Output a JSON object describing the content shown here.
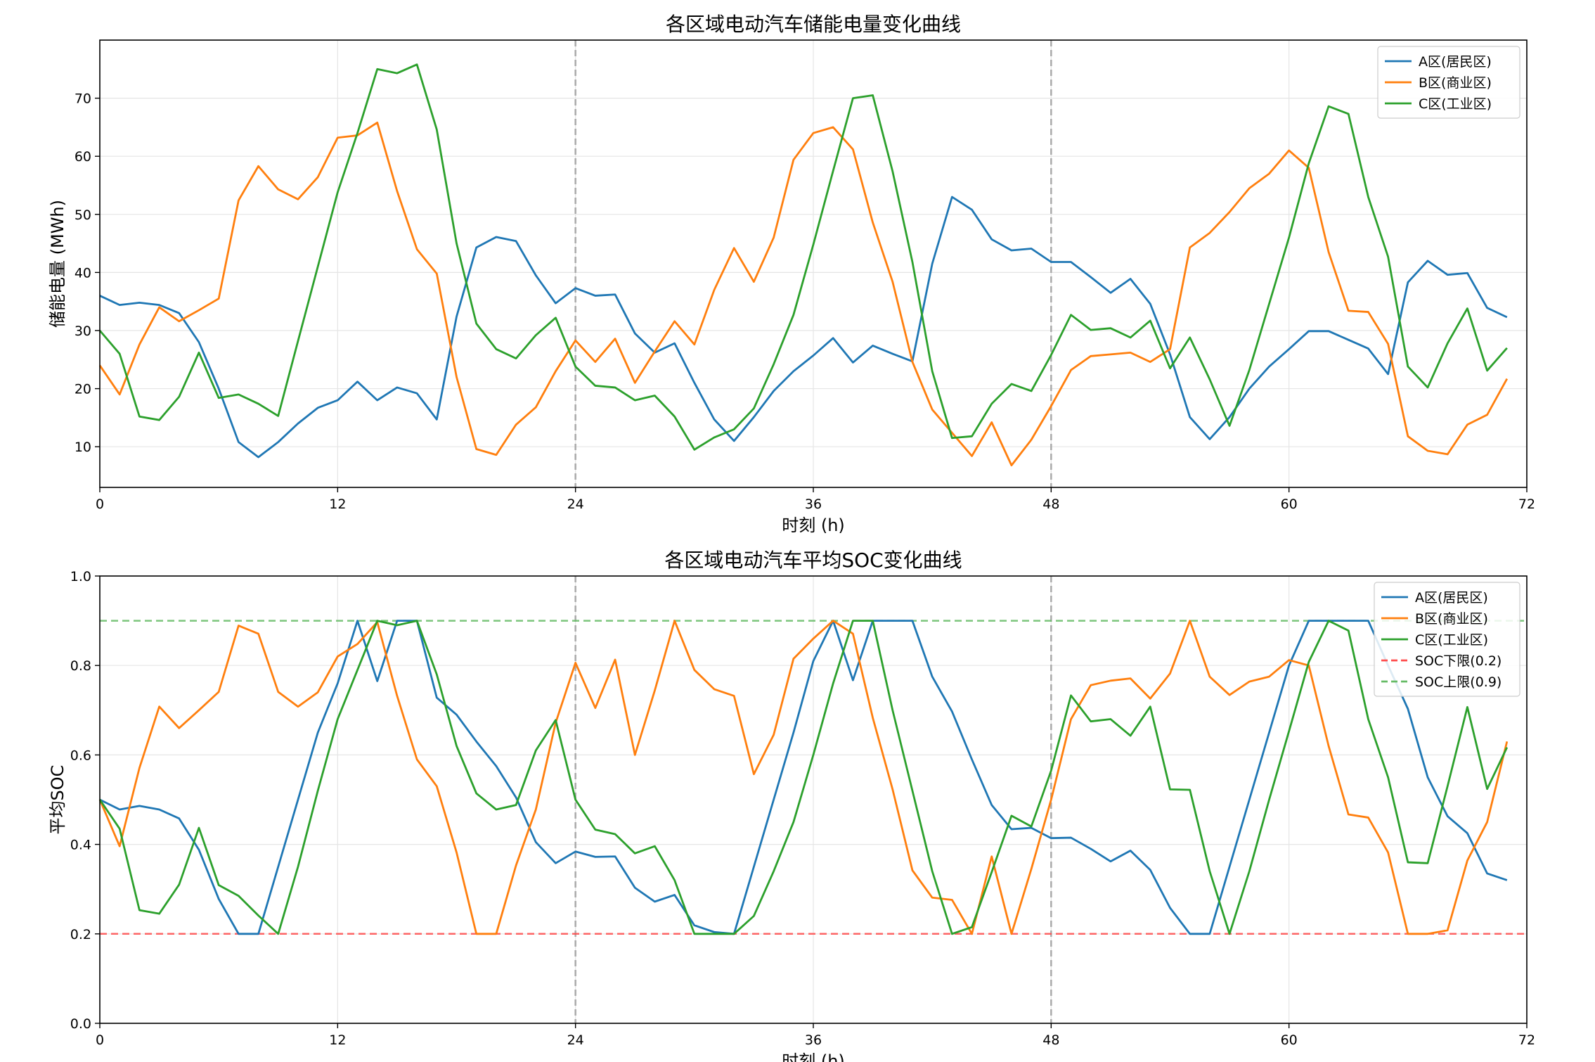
{
  "colors": {
    "A": "#1f77b4",
    "B": "#ff7f0e",
    "C": "#2ca02c",
    "soc_low": "#ff4d4d",
    "soc_high": "#66bb66",
    "grid": "#e5e5e5",
    "day_line": "#aaaaaa"
  },
  "chart_data": [
    {
      "type": "line",
      "title": "各区域电动汽车储能电量变化曲线",
      "xlabel": "时刻 (h)",
      "ylabel": "储能电量 (MWh)",
      "xlim": [
        0,
        72
      ],
      "ylim": [
        3,
        80
      ],
      "xticks": [
        0,
        12,
        24,
        36,
        48,
        60,
        72
      ],
      "yticks": [
        10,
        20,
        30,
        40,
        50,
        60,
        70
      ],
      "vlines": [
        24,
        48
      ],
      "grid": true,
      "legend": "top-right",
      "series": [
        {
          "name": "A区(居民区)",
          "color": "#1f77b4",
          "values": [
            36.0,
            34.4,
            34.8,
            34.4,
            33.0,
            28.0,
            20.0,
            10.8,
            8.2,
            10.8,
            14.0,
            16.7,
            18.0,
            21.2,
            18.0,
            20.2,
            19.2,
            14.7,
            32.4,
            44.3,
            46.1,
            45.4,
            39.5,
            34.7,
            37.3,
            36.0,
            36.2,
            29.5,
            26.2,
            27.8,
            21.0,
            14.7,
            11.0,
            15.1,
            19.6,
            23.0,
            25.7,
            28.7,
            24.5,
            27.4,
            26.0,
            24.7,
            41.5,
            53.0,
            50.8,
            45.7,
            43.8,
            44.1,
            41.8,
            41.8,
            39.2,
            36.5,
            38.9,
            34.6,
            25.9,
            15.1,
            11.3,
            15.1,
            20.0,
            23.8,
            26.8,
            29.9,
            29.9,
            28.4,
            26.9,
            22.5,
            38.3,
            42.0,
            39.6,
            39.9,
            33.9,
            32.3
          ]
        },
        {
          "name": "B区(商业区)",
          "color": "#ff7f0e",
          "values": [
            24.0,
            19.0,
            27.6,
            34.0,
            31.6,
            33.5,
            35.5,
            52.4,
            58.3,
            54.3,
            52.6,
            56.4,
            63.2,
            63.6,
            65.8,
            54.0,
            44.0,
            39.8,
            22.0,
            9.6,
            8.6,
            13.8,
            16.8,
            23.0,
            28.3,
            24.6,
            28.6,
            21.0,
            26.4,
            31.6,
            27.6,
            37.0,
            44.2,
            38.4,
            46.0,
            59.4,
            64.0,
            65.0,
            61.2,
            48.6,
            38.4,
            24.6,
            16.4,
            12.4,
            8.4,
            14.2,
            6.8,
            11.2,
            17.0,
            23.2,
            25.6,
            25.9,
            26.2,
            24.6,
            26.8,
            44.3,
            46.8,
            50.4,
            54.5,
            57.0,
            61.0,
            58.0,
            43.5,
            33.4,
            33.2,
            27.7,
            11.8,
            9.3,
            8.7,
            13.8,
            15.5,
            21.7
          ]
        },
        {
          "name": "C区(工业区)",
          "color": "#2ca02c",
          "values": [
            30.0,
            26.0,
            15.2,
            14.6,
            18.6,
            26.2,
            18.4,
            19.0,
            17.4,
            15.3,
            28.2,
            41.0,
            53.8,
            64.0,
            75.0,
            74.3,
            75.8,
            64.6,
            45.0,
            31.2,
            26.8,
            25.2,
            29.2,
            32.2,
            23.8,
            20.5,
            20.2,
            18.0,
            18.8,
            15.2,
            9.5,
            11.6,
            13.0,
            16.6,
            24.2,
            32.7,
            44.8,
            57.5,
            70.0,
            70.5,
            57.4,
            41.8,
            23.0,
            11.5,
            11.8,
            17.4,
            20.8,
            19.6,
            25.8,
            32.7,
            30.1,
            30.4,
            28.8,
            31.7,
            23.5,
            28.8,
            21.6,
            13.6,
            23.2,
            34.6,
            46.0,
            58.8,
            68.6,
            67.3,
            53.0,
            42.7,
            23.8,
            20.2,
            27.8,
            33.8,
            23.1,
            27.0
          ]
        }
      ]
    },
    {
      "type": "line",
      "title": "各区域电动汽车平均SOC变化曲线",
      "xlabel": "时刻 (h)",
      "ylabel": "平均SOC",
      "xlim": [
        0,
        72
      ],
      "ylim": [
        0.0,
        1.0
      ],
      "xticks": [
        0,
        12,
        24,
        36,
        48,
        60,
        72
      ],
      "yticks": [
        "0.0",
        "0.2",
        "0.4",
        "0.6",
        "0.8",
        "1.0"
      ],
      "vlines": [
        24,
        48
      ],
      "grid": true,
      "legend": "top-right",
      "series": [
        {
          "name": "A区(居民区)",
          "color": "#1f77b4",
          "values": [
            0.5,
            0.478,
            0.486,
            0.478,
            0.458,
            0.388,
            0.278,
            0.2,
            0.2,
            0.35,
            0.5,
            0.65,
            0.76,
            0.9,
            0.765,
            0.9,
            0.9,
            0.728,
            0.69,
            0.63,
            0.575,
            0.505,
            0.405,
            0.358,
            0.384,
            0.372,
            0.373,
            0.303,
            0.272,
            0.287,
            0.219,
            0.204,
            0.2,
            0.35,
            0.5,
            0.65,
            0.81,
            0.9,
            0.767,
            0.9,
            0.9,
            0.9,
            0.775,
            0.697,
            0.59,
            0.488,
            0.434,
            0.437,
            0.414,
            0.415,
            0.39,
            0.362,
            0.386,
            0.343,
            0.258,
            0.2,
            0.2,
            0.35,
            0.5,
            0.65,
            0.8,
            0.9,
            0.9,
            0.9,
            0.9,
            0.8,
            0.703,
            0.55,
            0.463,
            0.425,
            0.335,
            0.32
          ]
        },
        {
          "name": "B区(商业区)",
          "color": "#ff7f0e",
          "values": [
            0.5,
            0.396,
            0.571,
            0.708,
            0.66,
            0.7,
            0.741,
            0.889,
            0.871,
            0.741,
            0.708,
            0.74,
            0.82,
            0.848,
            0.897,
            0.732,
            0.59,
            0.53,
            0.382,
            0.2,
            0.2,
            0.353,
            0.478,
            0.672,
            0.806,
            0.705,
            0.813,
            0.6,
            0.744,
            0.9,
            0.79,
            0.747,
            0.732,
            0.557,
            0.645,
            0.815,
            0.86,
            0.9,
            0.871,
            0.683,
            0.523,
            0.342,
            0.281,
            0.276,
            0.2,
            0.373,
            0.2,
            0.345,
            0.5,
            0.68,
            0.756,
            0.766,
            0.771,
            0.726,
            0.782,
            0.9,
            0.775,
            0.734,
            0.764,
            0.775,
            0.812,
            0.8,
            0.62,
            0.467,
            0.46,
            0.382,
            0.2,
            0.2,
            0.208,
            0.364,
            0.45,
            0.63
          ]
        },
        {
          "name": "C区(工业区)",
          "color": "#2ca02c",
          "values": [
            0.5,
            0.435,
            0.253,
            0.245,
            0.31,
            0.437,
            0.309,
            0.285,
            0.241,
            0.2,
            0.35,
            0.52,
            0.68,
            0.79,
            0.9,
            0.89,
            0.9,
            0.78,
            0.62,
            0.514,
            0.478,
            0.488,
            0.61,
            0.678,
            0.5,
            0.433,
            0.423,
            0.38,
            0.396,
            0.32,
            0.2,
            0.2,
            0.2,
            0.24,
            0.34,
            0.45,
            0.6,
            0.76,
            0.9,
            0.9,
            0.7,
            0.52,
            0.34,
            0.2,
            0.215,
            0.338,
            0.464,
            0.44,
            0.565,
            0.733,
            0.675,
            0.68,
            0.643,
            0.708,
            0.523,
            0.522,
            0.34,
            0.2,
            0.34,
            0.5,
            0.653,
            0.808,
            0.9,
            0.878,
            0.68,
            0.55,
            0.36,
            0.358,
            0.53,
            0.707,
            0.524,
            0.617
          ]
        }
      ],
      "hlines": [
        {
          "name": "SOC下限(0.2)",
          "y": 0.2,
          "color": "#ff4d4d"
        },
        {
          "name": "SOC上限(0.9)",
          "y": 0.9,
          "color": "#66bb66"
        }
      ]
    }
  ]
}
